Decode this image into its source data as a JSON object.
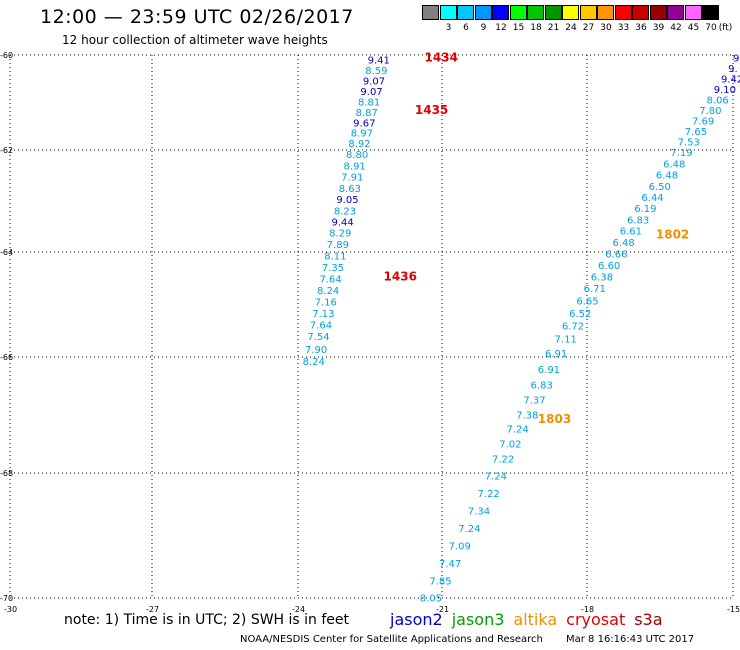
{
  "header": {
    "title": "12:00 — 23:59 UTC 02/26/2017",
    "subtitle": "12 hour collection of altimeter wave heights"
  },
  "colorbar": {
    "unit_label": "(ft)",
    "bins": [
      {
        "label": "",
        "color": "#808080"
      },
      {
        "label": "3",
        "color": "#00ffff"
      },
      {
        "label": "6",
        "color": "#00c8ff"
      },
      {
        "label": "9",
        "color": "#0096ff"
      },
      {
        "label": "12",
        "color": "#0000ff"
      },
      {
        "label": "15",
        "color": "#00ff00"
      },
      {
        "label": "18",
        "color": "#00c800"
      },
      {
        "label": "21",
        "color": "#009600"
      },
      {
        "label": "24",
        "color": "#ffff00"
      },
      {
        "label": "27",
        "color": "#ffc800"
      },
      {
        "label": "30",
        "color": "#ff9600"
      },
      {
        "label": "33",
        "color": "#ff0000"
      },
      {
        "label": "36",
        "color": "#c80000"
      },
      {
        "label": "39",
        "color": "#960000"
      },
      {
        "label": "42",
        "color": "#960096"
      },
      {
        "label": "45",
        "color": "#ff64ff"
      },
      {
        "label": "70",
        "color": "#000000"
      }
    ]
  },
  "chart_data": {
    "type": "scatter",
    "title": "12:00 — 23:59 UTC 02/26/2017",
    "subtitle": "12 hour collection of altimeter wave heights",
    "xlim": [
      -30,
      -15
    ],
    "ylim": [
      -70,
      -60
    ],
    "x_ticks": [
      -30,
      -27,
      -24,
      -21,
      -18,
      -15
    ],
    "x_tick_labels": [
      "-30",
      "-27",
      "-24",
      "-21",
      "-18",
      "-15"
    ],
    "y_ticks": [
      -60,
      -62,
      -64,
      -66,
      -68,
      -70
    ],
    "y_tick_labels": [
      "-60",
      "-62",
      "-64",
      "-66",
      "-68",
      "-70"
    ],
    "grid": true,
    "colors": {
      "light": "#00a0e0",
      "dark": "#0000c0",
      "pass_red": "#e00000",
      "pass_orange": "#f09000"
    },
    "series": [
      {
        "name": "cryosat",
        "points": [
          {
            "x": -22.58,
            "y": -60.18,
            "v": "9.41",
            "c": "dark"
          },
          {
            "x": -22.63,
            "y": -60.4,
            "v": "8.59",
            "c": "light"
          },
          {
            "x": -22.68,
            "y": -60.62,
            "v": "9.07",
            "c": "dark"
          },
          {
            "x": -22.73,
            "y": -60.84,
            "v": "9.07",
            "c": "dark"
          },
          {
            "x": -22.78,
            "y": -61.06,
            "v": "8.81",
            "c": "light"
          },
          {
            "x": -22.83,
            "y": -61.28,
            "v": "8.87",
            "c": "light"
          },
          {
            "x": -22.88,
            "y": -61.5,
            "v": "9.67",
            "c": "dark"
          },
          {
            "x": -22.93,
            "y": -61.72,
            "v": "8.97",
            "c": "light"
          },
          {
            "x": -22.98,
            "y": -61.94,
            "v": "8.92",
            "c": "light"
          },
          {
            "x": -23.03,
            "y": -62.16,
            "v": "8.80",
            "c": "light"
          },
          {
            "x": -23.08,
            "y": -62.38,
            "v": "8.91",
            "c": "light"
          },
          {
            "x": -23.13,
            "y": -62.6,
            "v": "7.91",
            "c": "light"
          },
          {
            "x": -23.18,
            "y": -62.82,
            "v": "8.63",
            "c": "light"
          },
          {
            "x": -23.23,
            "y": -63.04,
            "v": "9.05",
            "c": "dark"
          },
          {
            "x": -23.28,
            "y": -63.26,
            "v": "8.23",
            "c": "light"
          },
          {
            "x": -23.33,
            "y": -63.48,
            "v": "9.44",
            "c": "dark"
          },
          {
            "x": -23.38,
            "y": -63.7,
            "v": "8.29",
            "c": "light"
          },
          {
            "x": -23.43,
            "y": -63.92,
            "v": "7.89",
            "c": "light"
          },
          {
            "x": -23.48,
            "y": -64.14,
            "v": "8.11",
            "c": "light"
          },
          {
            "x": -23.53,
            "y": -64.36,
            "v": "7.35",
            "c": "light"
          },
          {
            "x": -23.58,
            "y": -64.58,
            "v": "7.64",
            "c": "light"
          },
          {
            "x": -23.63,
            "y": -64.8,
            "v": "8.24",
            "c": "light"
          },
          {
            "x": -23.68,
            "y": -65.02,
            "v": "7.16",
            "c": "light"
          },
          {
            "x": -23.73,
            "y": -65.24,
            "v": "7.13",
            "c": "light"
          },
          {
            "x": -23.78,
            "y": -65.46,
            "v": "7.64",
            "c": "light"
          },
          {
            "x": -23.83,
            "y": -65.68,
            "v": "7.54",
            "c": "light"
          },
          {
            "x": -23.88,
            "y": -65.92,
            "v": "7.90",
            "c": "light"
          },
          {
            "x": -23.93,
            "y": -66.14,
            "v": "8.24",
            "c": "light"
          }
        ],
        "pass_labels": [
          {
            "x": -21.4,
            "y": -60.14,
            "text": "1434",
            "c": "pass_red"
          },
          {
            "x": -21.6,
            "y": -61.24,
            "text": "1435",
            "c": "pass_red"
          },
          {
            "x": -22.25,
            "y": -64.54,
            "text": "1436",
            "c": "pass_red"
          }
        ]
      },
      {
        "name": "altika",
        "points": [
          {
            "x": -15.0,
            "y": -60.14,
            "v": "9",
            "c": "dark"
          },
          {
            "x": -15.1,
            "y": -60.36,
            "v": "9.",
            "c": "dark"
          },
          {
            "x": -15.25,
            "y": -60.58,
            "v": "9.42",
            "c": "dark"
          },
          {
            "x": -15.4,
            "y": -60.8,
            "v": "9.10",
            "c": "dark"
          },
          {
            "x": -15.55,
            "y": -61.02,
            "v": "8.06",
            "c": "light"
          },
          {
            "x": -15.7,
            "y": -61.24,
            "v": "7.80",
            "c": "light"
          },
          {
            "x": -15.85,
            "y": -61.46,
            "v": "7.69",
            "c": "light"
          },
          {
            "x": -16.0,
            "y": -61.68,
            "v": "7.65",
            "c": "light"
          },
          {
            "x": -16.15,
            "y": -61.9,
            "v": "7.53",
            "c": "light"
          },
          {
            "x": -16.3,
            "y": -62.12,
            "v": "7.19",
            "c": "light"
          },
          {
            "x": -16.45,
            "y": -62.34,
            "v": "6.48",
            "c": "light"
          },
          {
            "x": -16.6,
            "y": -62.56,
            "v": "6.48",
            "c": "light"
          },
          {
            "x": -16.75,
            "y": -62.78,
            "v": "6.50",
            "c": "light"
          },
          {
            "x": -16.9,
            "y": -63.0,
            "v": "6.44",
            "c": "light"
          },
          {
            "x": -17.05,
            "y": -63.22,
            "v": "6.19",
            "c": "light"
          },
          {
            "x": -17.2,
            "y": -63.44,
            "v": "6.83",
            "c": "light"
          },
          {
            "x": -17.35,
            "y": -63.66,
            "v": "6.61",
            "c": "light"
          },
          {
            "x": -17.5,
            "y": -63.88,
            "v": "6.48",
            "c": "light"
          },
          {
            "x": -17.65,
            "y": -64.1,
            "v": "6.66",
            "c": "light"
          },
          {
            "x": -17.8,
            "y": -64.32,
            "v": "6.60",
            "c": "light"
          },
          {
            "x": -17.95,
            "y": -64.54,
            "v": "6.38",
            "c": "light"
          },
          {
            "x": -18.1,
            "y": -64.76,
            "v": "6.71",
            "c": "light"
          },
          {
            "x": -18.25,
            "y": -65.0,
            "v": "6.65",
            "c": "light"
          },
          {
            "x": -18.4,
            "y": -65.24,
            "v": "6.52",
            "c": "light"
          },
          {
            "x": -18.55,
            "y": -65.48,
            "v": "6.72",
            "c": "light"
          },
          {
            "x": -18.7,
            "y": -65.72,
            "v": "7.11",
            "c": "light"
          },
          {
            "x": -18.9,
            "y": -66.0,
            "v": "6.91",
            "c": "light"
          },
          {
            "x": -19.05,
            "y": -66.28,
            "v": "6.91",
            "c": "light"
          },
          {
            "x": -19.2,
            "y": -66.54,
            "v": "6.83",
            "c": "light"
          },
          {
            "x": -19.35,
            "y": -66.8,
            "v": "7.37",
            "c": "light"
          },
          {
            "x": -19.5,
            "y": -67.06,
            "v": "7.38",
            "c": "light"
          },
          {
            "x": -19.7,
            "y": -67.3,
            "v": "7.24",
            "c": "light"
          },
          {
            "x": -19.85,
            "y": -67.56,
            "v": "7.02",
            "c": "light"
          },
          {
            "x": -20.0,
            "y": -67.82,
            "v": "7.22",
            "c": "light"
          },
          {
            "x": -20.15,
            "y": -68.1,
            "v": "7.24",
            "c": "light"
          },
          {
            "x": -20.3,
            "y": -68.38,
            "v": "7.22",
            "c": "light"
          },
          {
            "x": -20.5,
            "y": -68.66,
            "v": "7.34",
            "c": "light"
          },
          {
            "x": -20.7,
            "y": -68.94,
            "v": "7.24",
            "c": "light"
          },
          {
            "x": -20.9,
            "y": -69.22,
            "v": "7.09",
            "c": "light"
          },
          {
            "x": -21.1,
            "y": -69.5,
            "v": "7.47",
            "c": "light"
          },
          {
            "x": -21.3,
            "y": -69.78,
            "v": "7.85",
            "c": "light"
          },
          {
            "x": -21.5,
            "y": -70.06,
            "v": "8.05",
            "c": "light"
          }
        ],
        "pass_labels": [
          {
            "x": -16.6,
            "y": -63.74,
            "text": "1802",
            "c": "pass_orange"
          },
          {
            "x": -19.05,
            "y": -67.14,
            "text": "1803",
            "c": "pass_orange"
          }
        ]
      }
    ]
  },
  "legend": {
    "items": [
      {
        "label": "jason2",
        "color": "#0000c8"
      },
      {
        "label": "jason3",
        "color": "#00a000"
      },
      {
        "label": "altika",
        "color": "#f09000"
      },
      {
        "label": "cryosat",
        "color": "#e00000"
      },
      {
        "label": "s3a",
        "color": "#a00000"
      }
    ]
  },
  "footer": {
    "note": "note: 1) Time is in UTC; 2) SWH is in feet",
    "credit": "NOAA/NESDIS Center for Satellite Applications and Research",
    "timestamp": "Mar  8 16:16:43 UTC 2017"
  }
}
